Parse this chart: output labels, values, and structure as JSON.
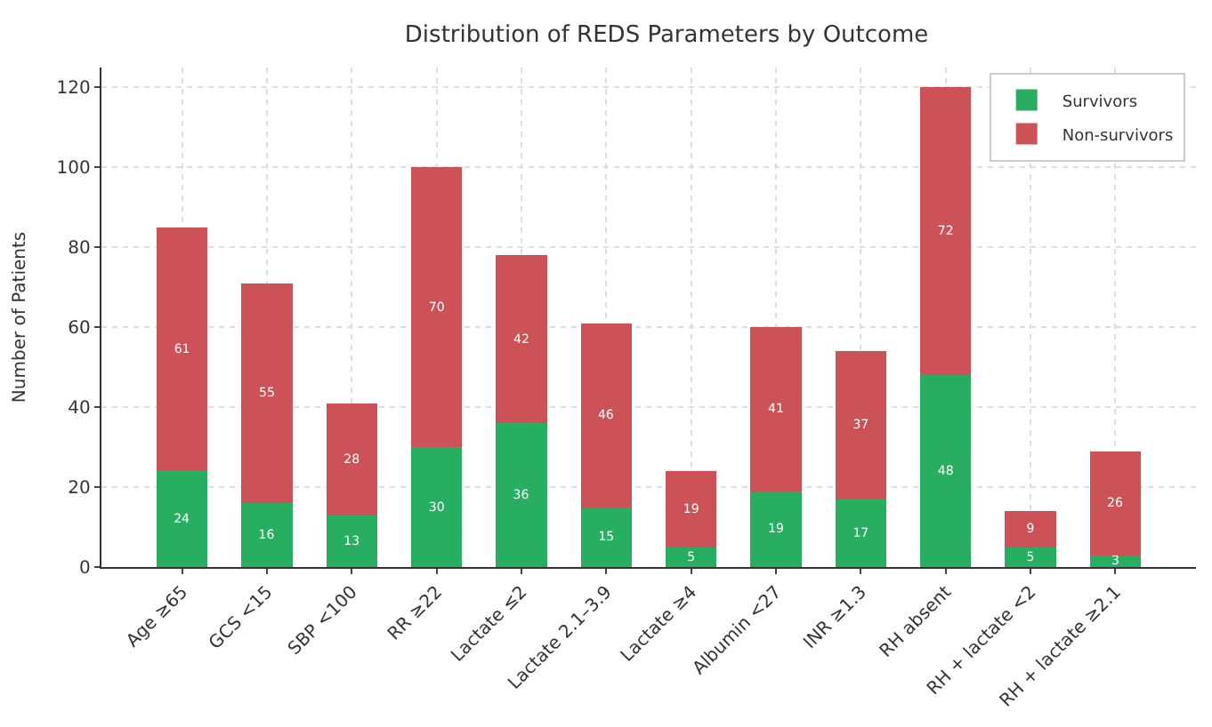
{
  "chart_data": {
    "type": "bar",
    "title": "Distribution of REDS Parameters by Outcome",
    "ylabel": "Number of Patients",
    "categories": [
      "Age ≥65",
      "GCS <15",
      "SBP <100",
      "RR ≥22",
      "Lactate ≤2",
      "Lactate 2.1–3.9",
      "Lactate ≥4",
      "Albumin <27",
      "INR ≥1.3",
      "RH absent",
      "RH + lactate <2",
      "RH + lactate ≥2.1"
    ],
    "series": [
      {
        "name": "Survivors",
        "color": "#27ae60",
        "values": [
          24,
          16,
          13,
          30,
          36,
          15,
          5,
          19,
          17,
          48,
          5,
          3
        ]
      },
      {
        "name": "Non-survivors",
        "color": "#cd5257",
        "values": [
          61,
          55,
          28,
          70,
          42,
          46,
          19,
          41,
          37,
          72,
          9,
          26
        ]
      }
    ],
    "stacked": true,
    "data_labels": true,
    "ylim": [
      0,
      125
    ],
    "yticks": [
      0,
      20,
      40,
      60,
      80,
      100,
      120
    ],
    "grid": true,
    "legend": "top right"
  }
}
